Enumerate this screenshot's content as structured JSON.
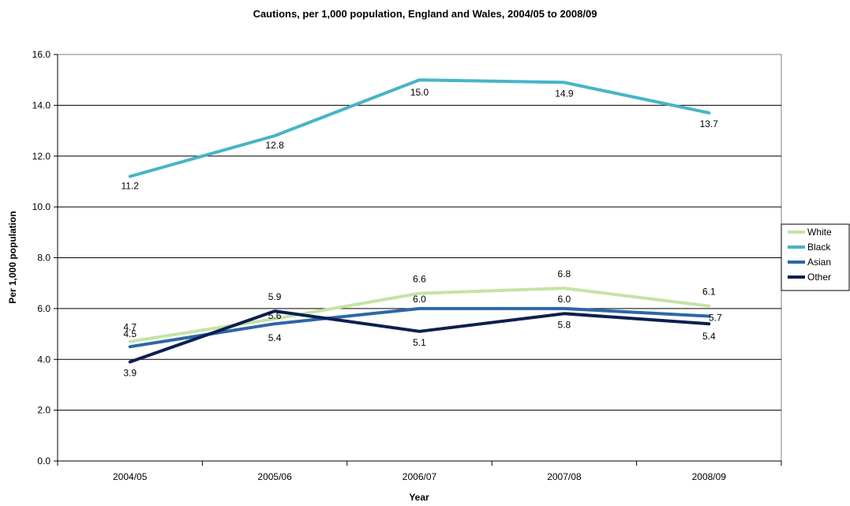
{
  "chart_data": {
    "type": "line",
    "title": "Cautions, per 1,000 population, England and Wales, 2004/05 to 2008/09",
    "xlabel": "Year",
    "ylabel": "Per 1,000 population",
    "categories": [
      "2004/05",
      "2005/06",
      "2006/07",
      "2007/08",
      "2008/09"
    ],
    "ylim": [
      0,
      16
    ],
    "yticks": [
      "0.0",
      "2.0",
      "4.0",
      "6.0",
      "8.0",
      "10.0",
      "12.0",
      "14.0",
      "16.0"
    ],
    "grid": true,
    "legend_position": "right",
    "series": [
      {
        "name": "White",
        "color": "#c4e3a8",
        "values": [
          4.7,
          5.6,
          6.6,
          6.8,
          6.1
        ],
        "labels": [
          "4.7",
          "5.6",
          "6.6",
          "6.8",
          "6.1"
        ]
      },
      {
        "name": "Black",
        "color": "#47b5c4",
        "values": [
          11.2,
          12.8,
          15.0,
          14.9,
          13.7
        ],
        "labels": [
          "11.2",
          "12.8",
          "15.0",
          "14.9",
          "13.7"
        ]
      },
      {
        "name": "Asian",
        "color": "#2e67a8",
        "values": [
          4.5,
          5.4,
          6.0,
          6.0,
          5.7
        ],
        "labels": [
          "4.5",
          "5.4",
          "6.0",
          "6.0",
          "5.7"
        ]
      },
      {
        "name": "Other",
        "color": "#0d1f4f",
        "values": [
          3.9,
          5.9,
          5.1,
          5.8,
          5.4
        ],
        "labels": [
          "3.9",
          "5.9",
          "5.1",
          "5.8",
          "5.4"
        ]
      }
    ]
  }
}
